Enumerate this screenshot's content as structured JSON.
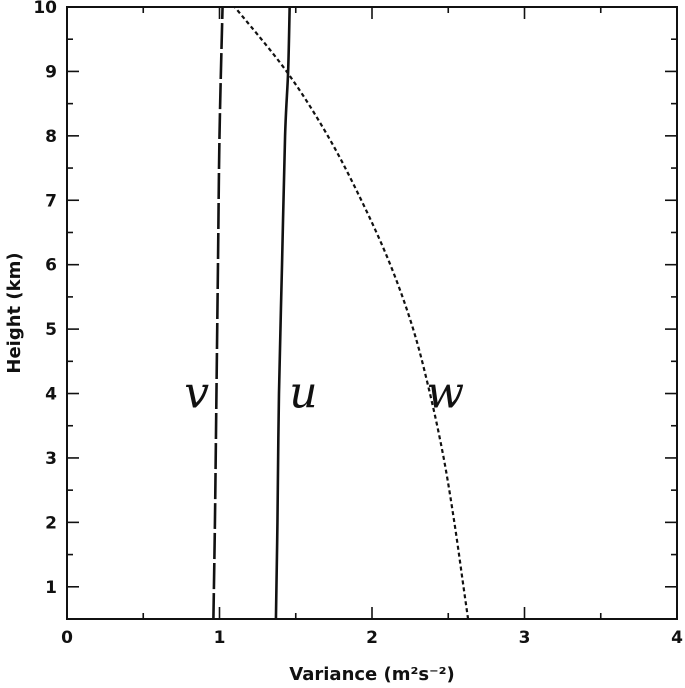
{
  "chart_data": {
    "type": "line",
    "title": "",
    "xlabel": "Variance (m²s⁻²)",
    "ylabel": "Height (km)",
    "xlim": [
      0,
      4
    ],
    "ylim": [
      0.5,
      10
    ],
    "x_ticks": [
      "0",
      "1",
      "2",
      "3",
      "4"
    ],
    "y_ticks": [
      "1",
      "2",
      "3",
      "4",
      "5",
      "6",
      "7",
      "8",
      "9",
      "10"
    ],
    "grid": false,
    "legend": "none (series labelled inline)",
    "series": [
      {
        "name": "v",
        "style": "long-dashed",
        "points": [
          {
            "x": 0.96,
            "y": 0.5
          },
          {
            "x": 0.97,
            "y": 2
          },
          {
            "x": 0.98,
            "y": 4
          },
          {
            "x": 0.99,
            "y": 6
          },
          {
            "x": 1.0,
            "y": 8
          },
          {
            "x": 1.02,
            "y": 10
          }
        ]
      },
      {
        "name": "u",
        "style": "solid",
        "points": [
          {
            "x": 1.37,
            "y": 0.5
          },
          {
            "x": 1.38,
            "y": 2
          },
          {
            "x": 1.39,
            "y": 4
          },
          {
            "x": 1.41,
            "y": 6
          },
          {
            "x": 1.43,
            "y": 8
          },
          {
            "x": 1.45,
            "y": 9
          },
          {
            "x": 1.46,
            "y": 10
          }
        ]
      },
      {
        "name": "w",
        "style": "short-dashed",
        "points": [
          {
            "x": 2.63,
            "y": 0.5
          },
          {
            "x": 2.6,
            "y": 1
          },
          {
            "x": 2.54,
            "y": 2
          },
          {
            "x": 2.47,
            "y": 3
          },
          {
            "x": 2.38,
            "y": 4
          },
          {
            "x": 2.27,
            "y": 5
          },
          {
            "x": 2.12,
            "y": 6
          },
          {
            "x": 1.93,
            "y": 7
          },
          {
            "x": 1.71,
            "y": 8
          },
          {
            "x": 1.44,
            "y": 9
          },
          {
            "x": 1.1,
            "y": 10
          }
        ]
      }
    ]
  }
}
